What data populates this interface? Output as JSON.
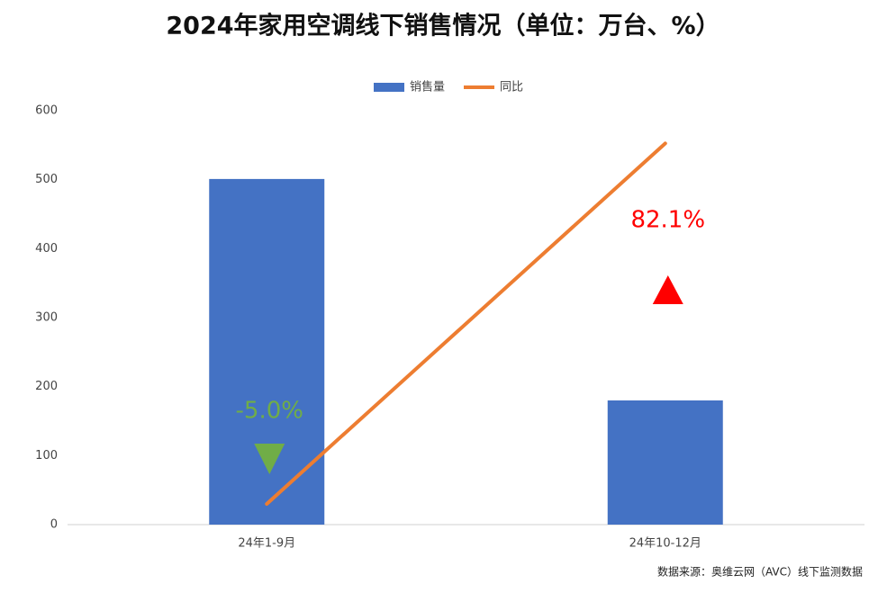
{
  "chart_data": {
    "type": "bar_line",
    "title": "2024年家用空调线下销售情况（单位：万台、%）",
    "categories": [
      "24年1-9月",
      "24年10-12月"
    ],
    "series": [
      {
        "name": "销售量",
        "type": "bar",
        "color": "#4472c4",
        "values": [
          501,
          180
        ]
      },
      {
        "name": "同比",
        "type": "line",
        "axis": "y2",
        "color": "#ed7d31",
        "values": [
          -5.0,
          82.1
        ],
        "value_labels": [
          "-5.0%",
          "82.1%"
        ]
      }
    ],
    "ylim": [
      0,
      600
    ],
    "yticks": [
      0,
      100,
      200,
      300,
      400,
      500,
      600
    ],
    "y2lim": [
      -10,
      90
    ],
    "legend": "top",
    "source": "数据来源：奥维云网（AVC）线下监测数据"
  }
}
